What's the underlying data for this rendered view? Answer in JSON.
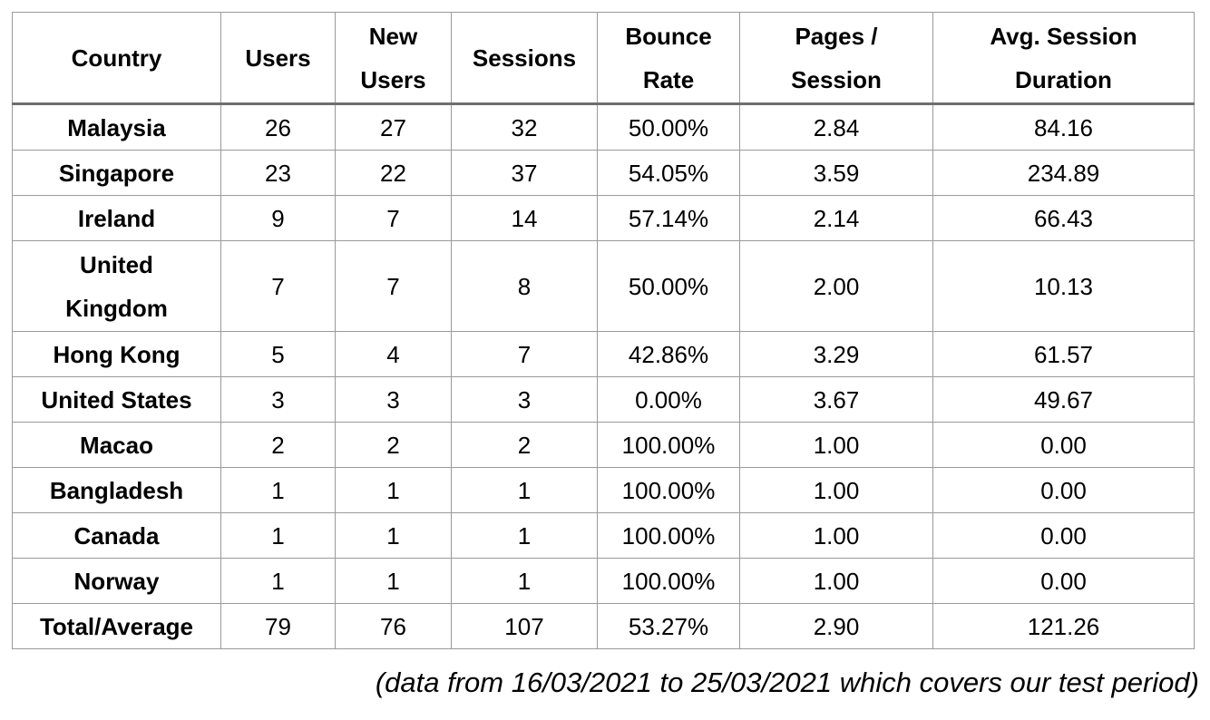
{
  "table": {
    "headers": [
      "Country",
      "Users",
      "New Users",
      "Sessions",
      "Bounce Rate",
      "Pages / Session",
      "Avg. Session Duration"
    ],
    "rows": [
      [
        "Malaysia",
        "26",
        "27",
        "32",
        "50.00%",
        "2.84",
        "84.16"
      ],
      [
        "Singapore",
        "23",
        "22",
        "37",
        "54.05%",
        "3.59",
        "234.89"
      ],
      [
        "Ireland",
        "9",
        "7",
        "14",
        "57.14%",
        "2.14",
        "66.43"
      ],
      [
        "United Kingdom",
        "7",
        "7",
        "8",
        "50.00%",
        "2.00",
        "10.13"
      ],
      [
        "Hong Kong",
        "5",
        "4",
        "7",
        "42.86%",
        "3.29",
        "61.57"
      ],
      [
        "United States",
        "3",
        "3",
        "3",
        "0.00%",
        "3.67",
        "49.67"
      ],
      [
        "Macao",
        "2",
        "2",
        "2",
        "100.00%",
        "1.00",
        "0.00"
      ],
      [
        "Bangladesh",
        "1",
        "1",
        "1",
        "100.00%",
        "1.00",
        "0.00"
      ],
      [
        "Canada",
        "1",
        "1",
        "1",
        "100.00%",
        "1.00",
        "0.00"
      ],
      [
        "Norway",
        "1",
        "1",
        "1",
        "100.00%",
        "1.00",
        "0.00"
      ],
      [
        "Total/Average",
        "79",
        "76",
        "107",
        "53.27%",
        "2.90",
        "121.26"
      ]
    ]
  },
  "caption": "(data from 16/03/2021 to 25/03/2021 which covers our test period)"
}
